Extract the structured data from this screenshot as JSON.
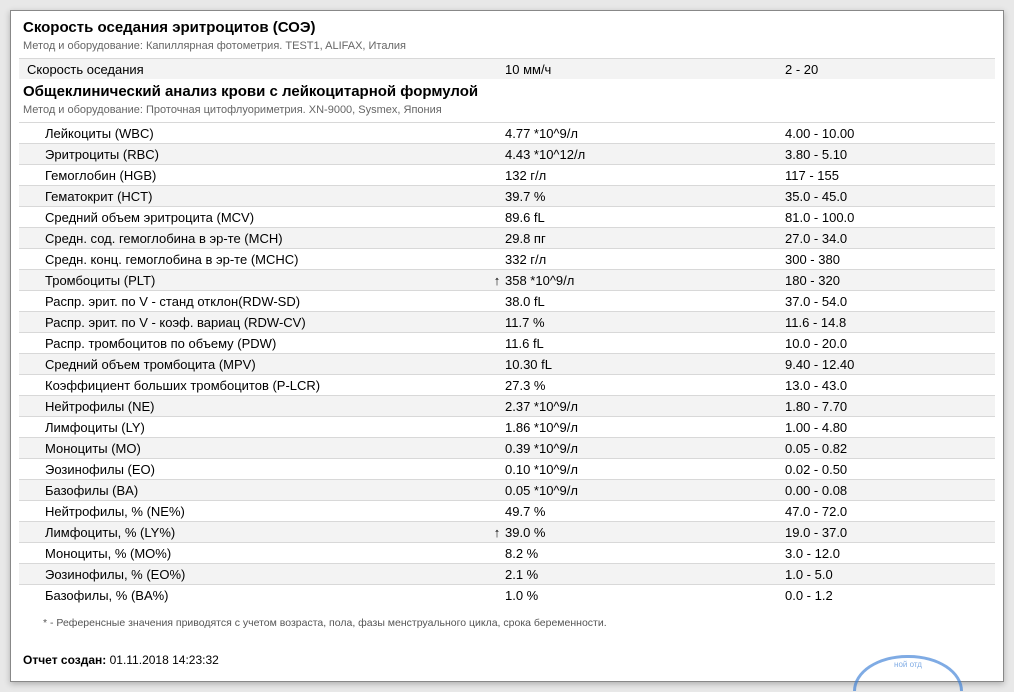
{
  "section1": {
    "title": "Скорость оседания эритроцитов (СОЭ)",
    "method_label": "Метод и оборудование:",
    "method_text": "Капиллярная фотометрия. TEST1, ALIFAX, Италия",
    "rows": [
      {
        "name": "Скорость оседания",
        "flag": "",
        "value": "10 мм/ч",
        "ref": "2 - 20",
        "indent": false,
        "shaded": true
      }
    ]
  },
  "section2": {
    "title": "Общеклинический анализ крови с лейкоцитарной формулой",
    "method_label": "Метод и оборудование:",
    "method_text": "Проточная цитофлуориметрия. XN-9000, Sysmex, Япония",
    "rows": [
      {
        "name": "Лейкоциты (WBC)",
        "flag": "",
        "value": "4.77 *10^9/л",
        "ref": "4.00 - 10.00",
        "shaded": false
      },
      {
        "name": "Эритроциты (RBC)",
        "flag": "",
        "value": "4.43 *10^12/л",
        "ref": "3.80 - 5.10",
        "shaded": true
      },
      {
        "name": "Гемоглобин (HGB)",
        "flag": "",
        "value": "132 г/л",
        "ref": "117 - 155",
        "shaded": false
      },
      {
        "name": "Гематокрит (HCT)",
        "flag": "",
        "value": "39.7 %",
        "ref": "35.0 - 45.0",
        "shaded": true
      },
      {
        "name": "Средний объем эритроцита (MCV)",
        "flag": "",
        "value": "89.6 fL",
        "ref": "81.0 - 100.0",
        "shaded": false
      },
      {
        "name": "Средн. сод. гемоглобина в эр-те (MCH)",
        "flag": "",
        "value": "29.8 пг",
        "ref": "27.0 - 34.0",
        "shaded": true
      },
      {
        "name": "Средн. конц. гемоглобина в эр-те (MCHC)",
        "flag": "",
        "value": "332 г/л",
        "ref": "300 - 380",
        "shaded": false
      },
      {
        "name": "Тромбоциты (PLT)",
        "flag": "↑",
        "value": "358 *10^9/л",
        "ref": "180 - 320",
        "shaded": true
      },
      {
        "name": "Распр. эрит. по V - станд отклон(RDW-SD)",
        "flag": "",
        "value": "38.0 fL",
        "ref": "37.0 - 54.0",
        "shaded": false
      },
      {
        "name": "Распр. эрит. по V - коэф. вариац (RDW-CV)",
        "flag": "",
        "value": "11.7 %",
        "ref": "11.6 - 14.8",
        "shaded": true
      },
      {
        "name": "Распр. тромбоцитов по объему (PDW)",
        "flag": "",
        "value": "11.6 fL",
        "ref": "10.0 - 20.0",
        "shaded": false
      },
      {
        "name": "Средний объем тромбоцита (MPV)",
        "flag": "",
        "value": "10.30 fL",
        "ref": "9.40 - 12.40",
        "shaded": true
      },
      {
        "name": "Коэффициент больших тромбоцитов (P-LCR)",
        "flag": "",
        "value": "27.3 %",
        "ref": "13.0 - 43.0",
        "shaded": false
      },
      {
        "name": "Нейтрофилы (NE)",
        "flag": "",
        "value": "2.37 *10^9/л",
        "ref": "1.80 - 7.70",
        "shaded": true
      },
      {
        "name": "Лимфоциты (LY)",
        "flag": "",
        "value": "1.86 *10^9/л",
        "ref": "1.00 - 4.80",
        "shaded": false
      },
      {
        "name": "Моноциты (MO)",
        "flag": "",
        "value": "0.39 *10^9/л",
        "ref": "0.05 - 0.82",
        "shaded": true
      },
      {
        "name": "Эозинофилы (EO)",
        "flag": "",
        "value": "0.10 *10^9/л",
        "ref": "0.02 - 0.50",
        "shaded": false
      },
      {
        "name": "Базофилы (BA)",
        "flag": "",
        "value": "0.05 *10^9/л",
        "ref": "0.00 - 0.08",
        "shaded": true
      },
      {
        "name": "Нейтрофилы, % (NE%)",
        "flag": "",
        "value": "49.7 %",
        "ref": "47.0 - 72.0",
        "shaded": false
      },
      {
        "name": "Лимфоциты, % (LY%)",
        "flag": "↑",
        "value": "39.0 %",
        "ref": "19.0 - 37.0",
        "shaded": true
      },
      {
        "name": "Моноциты, % (MO%)",
        "flag": "",
        "value": "8.2 %",
        "ref": "3.0 - 12.0",
        "shaded": false
      },
      {
        "name": "Эозинофилы, % (EO%)",
        "flag": "",
        "value": "2.1 %",
        "ref": "1.0 - 5.0",
        "shaded": true
      },
      {
        "name": "Базофилы, % (BA%)",
        "flag": "",
        "value": "1.0 %",
        "ref": "0.0 - 1.2",
        "shaded": false
      }
    ]
  },
  "footnote": "* - Референсные значения приводятся с учетом возраста, пола, фазы менструального цикла, срока беременности.",
  "report": {
    "label": "Отчет создан:",
    "value": "01.11.2018 14:23:32"
  },
  "stamp_text": "ной отд"
}
